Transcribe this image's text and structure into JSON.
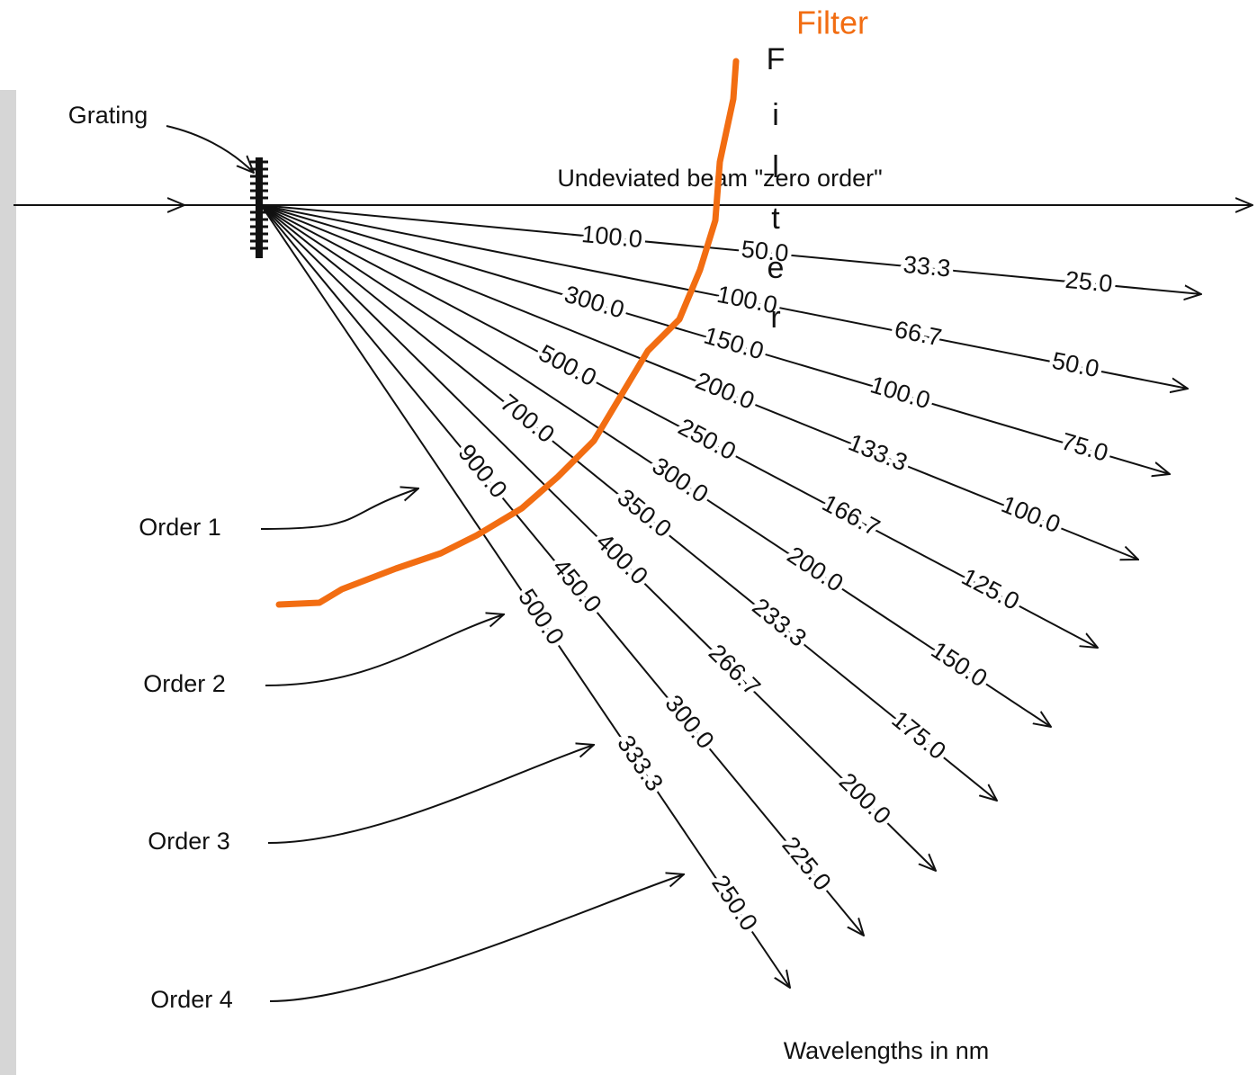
{
  "title": "Filter",
  "vertical_label": [
    "F",
    "i",
    "l",
    "t",
    "e",
    "r"
  ],
  "grating_label": "Grating",
  "zero_order_label": "Undeviated beam \"zero order\"",
  "orders": [
    "Order 1",
    "Order 2",
    "Order 3",
    "Order 4"
  ],
  "rays": [
    {
      "labels": [
        "100.0",
        "50.0",
        "33.3",
        "25.0"
      ]
    },
    {
      "labels": [
        "100.0",
        "66.7",
        "50.0"
      ]
    },
    {
      "labels": [
        "300.0",
        "150.0",
        "100.0",
        "75.0"
      ]
    },
    {
      "labels": [
        "200.0",
        "133.3",
        "100.0"
      ]
    },
    {
      "labels": [
        "500.0",
        "250.0",
        "166.7",
        "125.0"
      ]
    },
    {
      "labels": [
        "300.0",
        "200.0",
        "150.0"
      ]
    },
    {
      "labels": [
        "700.0",
        "350.0",
        "233.3",
        "175.0"
      ]
    },
    {
      "labels": [
        "400.0",
        "266.7",
        "200.0"
      ]
    },
    {
      "labels": [
        "900.0",
        "450.0",
        "300.0",
        "225.0"
      ]
    },
    {
      "labels": [
        "500.0",
        "333.3",
        "250.0"
      ]
    }
  ],
  "footer": "Wavelengths in nm"
}
